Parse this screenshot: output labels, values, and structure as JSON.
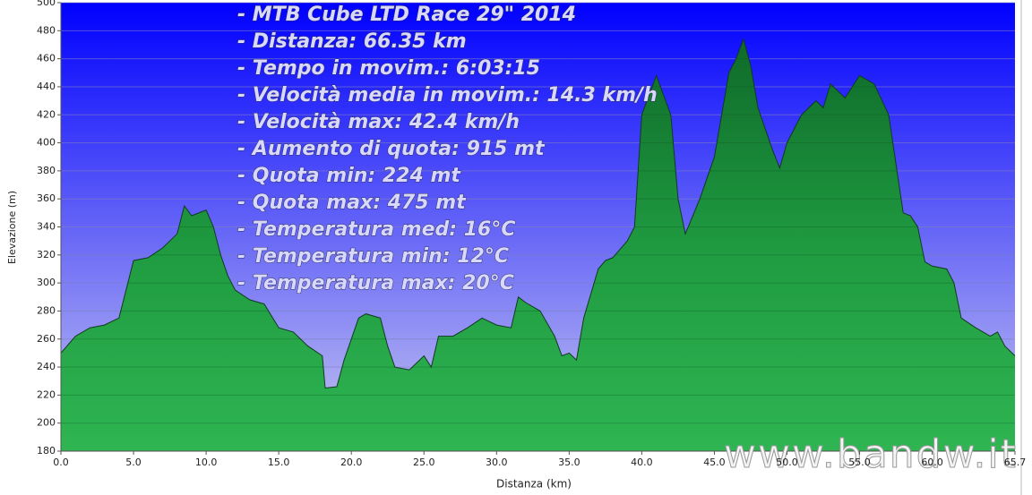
{
  "chart_data": {
    "type": "area",
    "ylabel": "Elevazione (m)",
    "xlabel": "Distanza  (km)",
    "annotations": [
      "- MTB Cube LTD Race 29\" 2014",
      "- Distanza: 66.35 km",
      "- Tempo in movim.: 6:03:15",
      "- Velocità media in movim.: 14.3 km/h",
      "- Velocità max: 42.4 km/h",
      "- Aumento di quota: 915 mt",
      "- Quota min: 224 mt",
      "- Quota max: 475 mt",
      "- Temperatura med: 16°C",
      "- Temperatura min: 12°C",
      "- Temperatura max: 20°C"
    ],
    "watermark": "www.bandw.it",
    "color": "#22a045",
    "x": [
      0,
      1,
      2,
      3,
      4,
      5,
      6,
      7,
      8,
      8.5,
      9,
      10,
      10.5,
      11,
      11.5,
      12,
      13,
      14,
      15,
      16,
      17,
      18,
      18.2,
      19,
      19.5,
      20,
      20.5,
      21,
      22,
      22.5,
      23,
      24,
      25,
      25.5,
      26,
      27,
      28,
      29,
      30,
      31,
      31.5,
      32,
      33,
      34,
      34.5,
      35,
      35.5,
      36,
      37,
      37.5,
      38,
      39,
      39.5,
      40,
      41,
      42,
      42.5,
      43,
      44,
      45,
      45.5,
      46,
      46.5,
      47,
      47.5,
      48,
      49,
      49.5,
      50,
      51,
      52,
      52.5,
      53,
      54,
      54.5,
      55,
      56,
      57,
      58,
      58.5,
      59,
      59.5,
      60,
      61,
      61.5,
      62,
      63,
      64,
      64.5,
      65,
      65.7
    ],
    "values": [
      250,
      262,
      268,
      270,
      275,
      316,
      318,
      325,
      335,
      355,
      348,
      352,
      340,
      320,
      305,
      295,
      288,
      285,
      268,
      265,
      255,
      248,
      225,
      226,
      245,
      260,
      275,
      278,
      275,
      255,
      240,
      238,
      248,
      240,
      262,
      262,
      268,
      275,
      270,
      268,
      290,
      286,
      280,
      262,
      248,
      250,
      245,
      275,
      310,
      316,
      318,
      330,
      340,
      420,
      448,
      420,
      360,
      335,
      360,
      390,
      420,
      450,
      460,
      474,
      455,
      425,
      395,
      382,
      400,
      420,
      430,
      425,
      442,
      432,
      440,
      448,
      442,
      420,
      350,
      348,
      340,
      315,
      312,
      310,
      300,
      275,
      268,
      262,
      265,
      255,
      248
    ],
    "xlim": [
      0,
      65.7
    ],
    "ylim": [
      180,
      500
    ],
    "xticks": [
      {
        "value": 0,
        "label": "0.0"
      },
      {
        "value": 5,
        "label": "5.0"
      },
      {
        "value": 10,
        "label": "10.0"
      },
      {
        "value": 15,
        "label": "15.0"
      },
      {
        "value": 20,
        "label": "20.0"
      },
      {
        "value": 25,
        "label": "25.0"
      },
      {
        "value": 30,
        "label": "30.0"
      },
      {
        "value": 35,
        "label": "35.0"
      },
      {
        "value": 40,
        "label": "40.0"
      },
      {
        "value": 45,
        "label": "45.0"
      },
      {
        "value": 50,
        "label": "50.0"
      },
      {
        "value": 55,
        "label": "55.0"
      },
      {
        "value": 60,
        "label": "60.0"
      },
      {
        "value": 65.7,
        "label": "65.7"
      }
    ],
    "yticks": [
      180,
      200,
      220,
      240,
      260,
      280,
      300,
      320,
      340,
      360,
      380,
      400,
      420,
      440,
      460,
      480,
      500
    ],
    "grid": true
  }
}
